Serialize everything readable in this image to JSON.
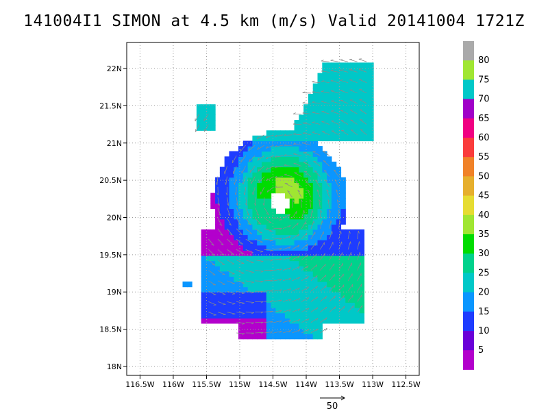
{
  "chart_data": {
    "type": "heatmap",
    "title": "141004I1 SIMON at 4.5 km (m/s) Valid 20141004 1721Z",
    "x_ticks": [
      "116.5W",
      "116W",
      "115.5W",
      "115W",
      "114.5W",
      "114W",
      "113.5W",
      "113W",
      "112.5W"
    ],
    "y_ticks": [
      "18N",
      "18.5N",
      "19N",
      "19.5N",
      "20N",
      "20.5N",
      "21N",
      "21.5N",
      "22N"
    ],
    "xlim_lon": [
      -116.7,
      -112.3
    ],
    "ylim_lat": [
      17.88,
      22.35
    ],
    "grid": true,
    "colorbar": {
      "labels": [
        "5",
        "10",
        "15",
        "20",
        "25",
        "30",
        "35",
        "40",
        "45",
        "50",
        "55",
        "60",
        "65",
        "70",
        "75",
        "80"
      ],
      "colors": [
        "#b300cc",
        "#6a00d8",
        "#1e3cff",
        "#0a96ff",
        "#00c8c8",
        "#00d28c",
        "#00dc00",
        "#a0e632",
        "#e6dc32",
        "#e6af2d",
        "#f08228",
        "#fa3c3c",
        "#f00082",
        "#a000c8",
        "#00c8c8",
        "#a0e632",
        "#aaaaaa"
      ]
    },
    "storm_center": {
      "lon": -114.4,
      "lat": 20.2
    },
    "eye_radius_deg": 0.14,
    "reference_vector": {
      "label": "50",
      "value": 50
    }
  }
}
